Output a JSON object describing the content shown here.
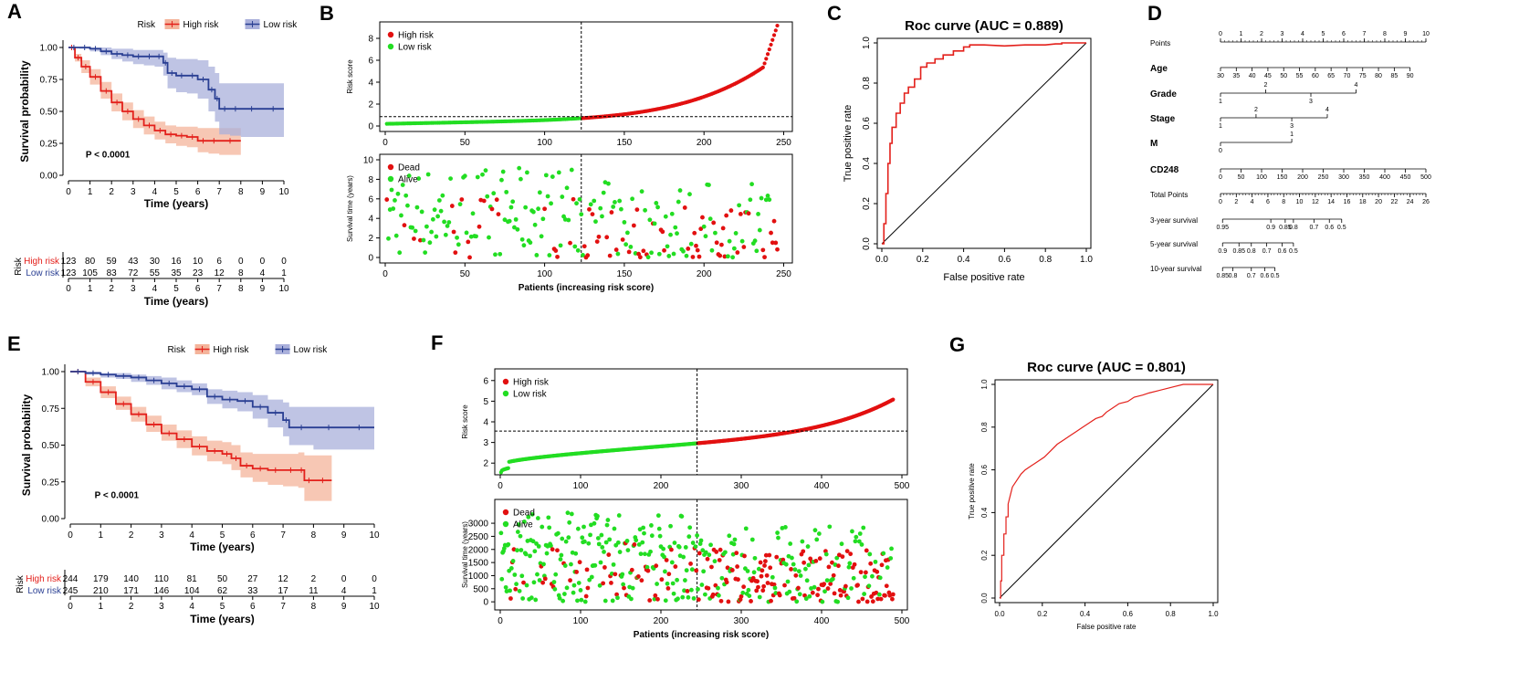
{
  "colors": {
    "high": "#e3201b",
    "low": "#2a3f93",
    "high_fill": "#f4b49b",
    "low_fill": "#aab0db",
    "alive": "#22dd22",
    "dead": "#e21010"
  },
  "chart_data": [
    {
      "id": "A",
      "panel_label": "A",
      "type": "line",
      "subtype": "kaplan-meier",
      "legend_title": "Risk",
      "legend": [
        "High risk",
        "Low risk"
      ],
      "ylabel": "Survival probability",
      "xlabel": "Time (years)",
      "x_ticks": [
        0,
        1,
        2,
        3,
        4,
        5,
        6,
        7,
        8,
        9,
        10
      ],
      "y_ticks": [
        "0.00",
        "0.25",
        "0.50",
        "0.75",
        "1.00"
      ],
      "xlim": [
        0,
        10
      ],
      "ylim": [
        0,
        1
      ],
      "pvalue": "P < 0.0001",
      "series": [
        {
          "name": "High risk",
          "color_key": "high",
          "fill_key": "high_fill",
          "x": [
            0,
            0.3,
            0.6,
            1,
            1.5,
            2,
            2.5,
            3,
            3.5,
            4,
            4.5,
            5,
            5.5,
            6,
            6.5,
            7,
            8
          ],
          "y": [
            1,
            0.92,
            0.85,
            0.77,
            0.66,
            0.57,
            0.5,
            0.44,
            0.39,
            0.35,
            0.32,
            0.31,
            0.3,
            0.27,
            0.27,
            0.27,
            0.27
          ],
          "lo": [
            1,
            0.89,
            0.8,
            0.71,
            0.6,
            0.5,
            0.43,
            0.37,
            0.32,
            0.28,
            0.25,
            0.23,
            0.22,
            0.18,
            0.17,
            0.16,
            0.15
          ],
          "hi": [
            1,
            0.95,
            0.9,
            0.83,
            0.73,
            0.64,
            0.57,
            0.51,
            0.46,
            0.42,
            0.39,
            0.38,
            0.38,
            0.37,
            0.37,
            0.37,
            0.37
          ]
        },
        {
          "name": "Low risk",
          "color_key": "low",
          "fill_key": "low_fill",
          "x": [
            0,
            0.5,
            1,
            1.5,
            2,
            2.5,
            3,
            3.5,
            4,
            4.4,
            4.6,
            5,
            5.5,
            6,
            6.5,
            6.8,
            7,
            7.5,
            8,
            9,
            10
          ],
          "y": [
            1,
            1,
            0.99,
            0.97,
            0.95,
            0.94,
            0.93,
            0.93,
            0.93,
            0.88,
            0.8,
            0.78,
            0.78,
            0.75,
            0.67,
            0.6,
            0.52,
            0.52,
            0.52,
            0.52,
            0.52
          ],
          "lo": [
            1,
            0.99,
            0.97,
            0.94,
            0.91,
            0.89,
            0.87,
            0.86,
            0.85,
            0.78,
            0.68,
            0.65,
            0.64,
            0.6,
            0.5,
            0.42,
            0.32,
            0.31,
            0.3,
            0.3,
            0.3
          ],
          "hi": [
            1,
            1,
            1,
            1,
            0.99,
            0.99,
            0.98,
            0.98,
            0.98,
            0.96,
            0.92,
            0.91,
            0.91,
            0.9,
            0.85,
            0.8,
            0.72,
            0.72,
            0.72,
            0.72,
            0.72
          ]
        }
      ],
      "risk_table": {
        "label": "Risk",
        "xlabel": "Time (years)",
        "rows": [
          {
            "name": "High risk",
            "color_key": "high",
            "values": [
              123,
              80,
              59,
              43,
              30,
              16,
              10,
              6,
              0,
              0,
              0
            ]
          },
          {
            "name": "Low risk",
            "color_key": "low",
            "values": [
              123,
              105,
              83,
              72,
              55,
              35,
              23,
              12,
              8,
              4,
              1
            ]
          }
        ]
      }
    },
    {
      "id": "B",
      "panel_label": "B",
      "type": "scatter",
      "top": {
        "ylabel": "Risk score",
        "ylim": [
          0,
          9
        ],
        "y_ticks": [
          0,
          2,
          4,
          6,
          8
        ],
        "legend": [
          "High risk",
          "Low risk"
        ],
        "cutoff_index": 123,
        "cutoff_score": 0.85,
        "n": 246
      },
      "bottom": {
        "ylabel": "Survival time (years)",
        "ylim": [
          0,
          10
        ],
        "y_ticks": [
          0,
          2,
          4,
          6,
          8,
          10
        ],
        "legend": [
          "Dead",
          "Alive"
        ],
        "n": 246
      },
      "xlabel": "Patients  (increasing risk score)",
      "x_ticks": [
        0,
        50,
        100,
        150,
        200,
        250
      ],
      "xlim": [
        0,
        252
      ]
    },
    {
      "id": "C",
      "panel_label": "C",
      "type": "line",
      "subtype": "roc",
      "title": "Roc curve (AUC = 0.889)",
      "auc": 0.889,
      "xlabel": "False positive rate",
      "ylabel": "True positive rate",
      "x_ticks": [
        "0.0",
        "0.2",
        "0.4",
        "0.6",
        "0.8",
        "1.0"
      ],
      "y_ticks": [
        "0.0",
        "0.2",
        "0.4",
        "0.6",
        "0.8",
        "1.0"
      ],
      "xlim": [
        0,
        1
      ],
      "ylim": [
        0,
        1
      ],
      "fpr": [
        0,
        0.01,
        0.01,
        0.02,
        0.02,
        0.03,
        0.03,
        0.04,
        0.04,
        0.05,
        0.05,
        0.07,
        0.07,
        0.09,
        0.09,
        0.11,
        0.11,
        0.13,
        0.13,
        0.16,
        0.16,
        0.19,
        0.19,
        0.22,
        0.22,
        0.26,
        0.26,
        0.3,
        0.3,
        0.35,
        0.35,
        0.4,
        0.4,
        0.43,
        0.43,
        0.5,
        0.6,
        0.7,
        0.8,
        0.85,
        0.88,
        0.88,
        1.0
      ],
      "tpr": [
        0,
        0,
        0.1,
        0.1,
        0.25,
        0.25,
        0.4,
        0.4,
        0.5,
        0.5,
        0.58,
        0.58,
        0.65,
        0.65,
        0.7,
        0.7,
        0.75,
        0.75,
        0.78,
        0.78,
        0.82,
        0.82,
        0.88,
        0.88,
        0.9,
        0.9,
        0.92,
        0.92,
        0.94,
        0.94,
        0.96,
        0.96,
        0.98,
        0.98,
        0.99,
        0.99,
        0.985,
        0.99,
        0.99,
        0.995,
        0.995,
        1.0,
        1.0
      ]
    },
    {
      "id": "D",
      "panel_label": "D",
      "type": "table",
      "subtype": "nomogram",
      "rows": [
        {
          "label": "Points",
          "bold": false,
          "ticks": [
            "0",
            "1",
            "2",
            "3",
            "4",
            "5",
            "6",
            "7",
            "8",
            "9",
            "10"
          ],
          "from": 0,
          "to": 1
        },
        {
          "label": "Age",
          "bold": true,
          "ticks": [
            "30",
            "35",
            "40",
            "45",
            "50",
            "55",
            "60",
            "65",
            "70",
            "75",
            "80",
            "85",
            "90"
          ],
          "from": 0,
          "to": 0.923
        },
        {
          "label": "Grade",
          "bold": true,
          "ticks": [
            "1",
            "2",
            "3",
            "4"
          ],
          "positions": [
            0,
            0.22,
            0.44,
            0.66
          ],
          "alternate": true
        },
        {
          "label": "Stage",
          "bold": true,
          "ticks": [
            "1",
            "2",
            "3",
            "4"
          ],
          "positions": [
            0,
            0.173,
            0.347,
            0.52
          ],
          "alternate": true
        },
        {
          "label": "M",
          "bold": true,
          "ticks": [
            "0",
            "1"
          ],
          "positions": [
            0,
            0.347
          ],
          "alternate": true
        },
        {
          "label": "CD248",
          "bold": true,
          "ticks": [
            "0",
            "50",
            "100",
            "150",
            "200",
            "250",
            "300",
            "350",
            "400",
            "450",
            "500"
          ],
          "from": 0,
          "to": 1
        },
        {
          "label": "Total Points",
          "bold": false,
          "ticks": [
            "0",
            "2",
            "4",
            "6",
            "8",
            "10",
            "12",
            "14",
            "16",
            "18",
            "20",
            "22",
            "24",
            "26"
          ],
          "from": 0,
          "to": 1
        },
        {
          "label": "3-year survival",
          "bold": false,
          "ticks": [
            "0.95",
            "0.9",
            "0.85",
            "0.8",
            "0.7",
            "0.6",
            "0.5"
          ],
          "positions": [
            0.01,
            0.245,
            0.315,
            0.355,
            0.455,
            0.53,
            0.59
          ]
        },
        {
          "label": "5-year survival",
          "bold": false,
          "ticks": [
            "0.9",
            "0.85",
            "0.8",
            "0.7",
            "0.6",
            "0.5"
          ],
          "positions": [
            0.01,
            0.09,
            0.15,
            0.225,
            0.3,
            0.355
          ]
        },
        {
          "label": "10-year survival",
          "bold": false,
          "ticks": [
            "0.85",
            "0.8",
            "0.7",
            "0.6",
            "0.5"
          ],
          "positions": [
            0.01,
            0.06,
            0.15,
            0.215,
            0.265
          ]
        }
      ]
    },
    {
      "id": "E",
      "panel_label": "E",
      "type": "line",
      "subtype": "kaplan-meier",
      "legend_title": "Risk",
      "legend": [
        "High risk",
        "Low risk"
      ],
      "ylabel": "Survival probability",
      "xlabel": "Time (years)",
      "x_ticks": [
        0,
        1,
        2,
        3,
        4,
        5,
        6,
        7,
        8,
        9,
        10
      ],
      "y_ticks": [
        "0.00",
        "0.25",
        "0.50",
        "0.75",
        "1.00"
      ],
      "xlim": [
        0,
        10
      ],
      "ylim": [
        0,
        1
      ],
      "pvalue": "P < 0.0001",
      "series": [
        {
          "name": "High risk",
          "color_key": "high",
          "fill_key": "high_fill",
          "x": [
            0,
            0.5,
            1,
            1.5,
            2,
            2.5,
            3,
            3.5,
            4,
            4.5,
            5,
            5.3,
            5.6,
            6,
            6.5,
            7,
            7.5,
            7.7,
            8,
            8.6
          ],
          "y": [
            1,
            0.93,
            0.86,
            0.78,
            0.71,
            0.64,
            0.58,
            0.54,
            0.49,
            0.46,
            0.44,
            0.41,
            0.36,
            0.34,
            0.33,
            0.33,
            0.33,
            0.26,
            0.26,
            0.26
          ],
          "lo": [
            1,
            0.9,
            0.82,
            0.74,
            0.66,
            0.59,
            0.53,
            0.48,
            0.43,
            0.39,
            0.37,
            0.33,
            0.28,
            0.25,
            0.23,
            0.22,
            0.21,
            0.12,
            0.12,
            0.12
          ],
          "hi": [
            1,
            0.96,
            0.9,
            0.83,
            0.76,
            0.7,
            0.64,
            0.6,
            0.56,
            0.53,
            0.52,
            0.5,
            0.45,
            0.44,
            0.44,
            0.44,
            0.45,
            0.43,
            0.43,
            0.43
          ]
        },
        {
          "name": "Low risk",
          "color_key": "low",
          "fill_key": "low_fill",
          "x": [
            0,
            0.5,
            1,
            1.5,
            2,
            2.5,
            3,
            3.5,
            4,
            4.5,
            5,
            5.5,
            6,
            6.5,
            7,
            7.2,
            8,
            9,
            10
          ],
          "y": [
            1,
            0.99,
            0.98,
            0.97,
            0.96,
            0.94,
            0.92,
            0.9,
            0.88,
            0.83,
            0.81,
            0.8,
            0.76,
            0.72,
            0.67,
            0.62,
            0.62,
            0.62,
            0.62
          ],
          "lo": [
            1,
            0.98,
            0.96,
            0.95,
            0.93,
            0.91,
            0.88,
            0.86,
            0.84,
            0.78,
            0.75,
            0.73,
            0.68,
            0.62,
            0.56,
            0.5,
            0.47,
            0.47,
            0.47
          ],
          "hi": [
            1,
            1,
            0.99,
            0.99,
            0.98,
            0.97,
            0.96,
            0.94,
            0.92,
            0.88,
            0.87,
            0.86,
            0.84,
            0.81,
            0.79,
            0.76,
            0.76,
            0.76,
            0.76
          ]
        }
      ],
      "risk_table": {
        "label": "Risk",
        "xlabel": "Time (years)",
        "rows": [
          {
            "name": "High risk",
            "color_key": "high",
            "values": [
              244,
              179,
              140,
              110,
              81,
              50,
              27,
              12,
              2,
              0,
              0
            ]
          },
          {
            "name": "Low risk",
            "color_key": "low",
            "values": [
              245,
              210,
              171,
              146,
              104,
              62,
              33,
              17,
              11,
              4,
              1
            ]
          }
        ]
      }
    },
    {
      "id": "F",
      "panel_label": "F",
      "type": "scatter",
      "top": {
        "ylabel": "Risk score",
        "ylim": [
          1.7,
          6.3
        ],
        "y_ticks": [
          2,
          3,
          4,
          5,
          6
        ],
        "legend": [
          "High risk",
          "Low risk"
        ],
        "cutoff_index": 245,
        "cutoff_score": 3.55,
        "n": 489
      },
      "bottom": {
        "ylabel": "Survival time (years)",
        "ylim": [
          -100,
          3700
        ],
        "y_ticks": [
          0,
          500,
          1000,
          1500,
          2000,
          2500,
          3000
        ],
        "legend": [
          "Dead",
          "Alive"
        ],
        "n": 489
      },
      "xlabel": "Patients  (increasing risk score)",
      "x_ticks": [
        0,
        100,
        200,
        300,
        400,
        500
      ],
      "xlim": [
        0,
        500
      ]
    },
    {
      "id": "G",
      "panel_label": "G",
      "type": "line",
      "subtype": "roc",
      "title": "Roc curve (AUC = 0.801)",
      "auc": 0.801,
      "xlabel": "False positive rate",
      "ylabel": "True positive rate",
      "x_ticks": [
        "0.0",
        "0.2",
        "0.4",
        "0.6",
        "0.8",
        "1.0"
      ],
      "y_ticks": [
        "0.0",
        "0.2",
        "0.4",
        "0.6",
        "0.8",
        "1.0"
      ],
      "xlim": [
        0,
        1
      ],
      "ylim": [
        0,
        1
      ],
      "fpr": [
        0,
        0.005,
        0.005,
        0.01,
        0.01,
        0.02,
        0.02,
        0.03,
        0.03,
        0.04,
        0.04,
        0.05,
        0.06,
        0.08,
        0.1,
        0.12,
        0.15,
        0.18,
        0.21,
        0.24,
        0.27,
        0.3,
        0.33,
        0.36,
        0.39,
        0.42,
        0.45,
        0.48,
        0.5,
        0.53,
        0.56,
        0.6,
        0.63,
        0.67,
        0.7,
        0.74,
        0.78,
        0.82,
        0.86,
        0.9,
        1.0
      ],
      "tpr": [
        0,
        0,
        0.08,
        0.08,
        0.2,
        0.2,
        0.3,
        0.3,
        0.38,
        0.38,
        0.44,
        0.48,
        0.52,
        0.55,
        0.58,
        0.6,
        0.62,
        0.64,
        0.66,
        0.69,
        0.72,
        0.74,
        0.76,
        0.78,
        0.8,
        0.82,
        0.84,
        0.85,
        0.87,
        0.89,
        0.91,
        0.92,
        0.94,
        0.95,
        0.96,
        0.97,
        0.98,
        0.99,
        1.0,
        1.0,
        1.0
      ]
    }
  ]
}
